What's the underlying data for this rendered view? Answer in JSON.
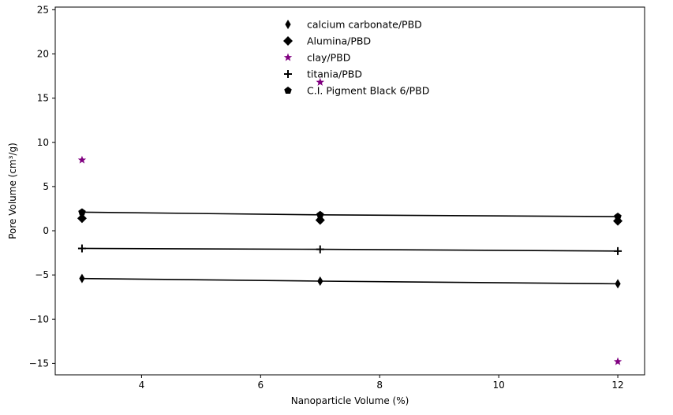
{
  "chart_data": {
    "type": "scatter",
    "title": "",
    "xlabel": "Nanoparticle Volume (%)",
    "ylabel": "Pore Volume (cm³/g)",
    "xlim": [
      2.55,
      12.45
    ],
    "ylim": [
      -16.3,
      25.3
    ],
    "xticks": [
      4,
      6,
      8,
      10,
      12
    ],
    "yticks": [
      -15,
      -10,
      -5,
      0,
      5,
      10,
      15,
      20,
      25
    ],
    "grid": false,
    "legend_position": "top-center",
    "series": [
      {
        "name": "calcium carbonate/PBD",
        "marker": "thin-diamond",
        "color": "#000000",
        "x": [
          3,
          7,
          12
        ],
        "y": [
          -5.4,
          -5.7,
          -6.0
        ],
        "trend_line": [
          [
            3,
            -5.4
          ],
          [
            7,
            -5.7
          ],
          [
            12,
            -6.0
          ]
        ]
      },
      {
        "name": "Alumina/PBD",
        "marker": "diamond",
        "color": "#000000",
        "x": [
          3,
          7,
          12
        ],
        "y": [
          1.4,
          1.2,
          1.1
        ],
        "trend_line": []
      },
      {
        "name": "clay/PBD",
        "marker": "star",
        "color": "#800080",
        "x": [
          3,
          7,
          12
        ],
        "y": [
          8.0,
          16.8,
          -14.8
        ],
        "trend_line": []
      },
      {
        "name": "titania/PBD",
        "marker": "plus",
        "color": "#000000",
        "x": [
          3,
          7,
          12
        ],
        "y": [
          -2.0,
          -2.1,
          -2.3
        ],
        "trend_line": [
          [
            3,
            -2.0
          ],
          [
            7,
            -2.1
          ],
          [
            12,
            -2.3
          ]
        ]
      },
      {
        "name": "C.I. Pigment Black 6/PBD",
        "marker": "pentagon",
        "color": "#000000",
        "x": [
          3,
          7,
          12
        ],
        "y": [
          2.1,
          1.8,
          1.6
        ],
        "trend_line": [
          [
            3,
            2.1
          ],
          [
            7,
            1.8
          ],
          [
            12,
            1.6
          ]
        ]
      }
    ]
  }
}
